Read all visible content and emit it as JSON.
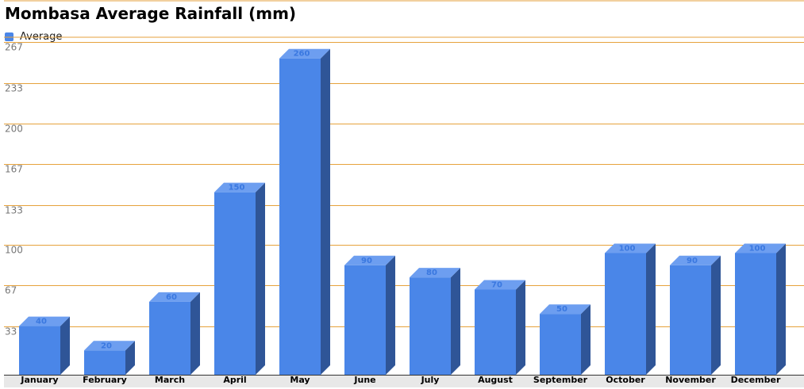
{
  "chart_data": {
    "type": "bar",
    "title": "Mombasa Average Rainfall (mm)",
    "xlabel": "",
    "ylabel": "",
    "categories": [
      "January",
      "February",
      "March",
      "April",
      "May",
      "June",
      "July",
      "August",
      "September",
      "October",
      "November",
      "December"
    ],
    "series": [
      {
        "name": "Average",
        "values": [
          40,
          20,
          60,
          150,
          260,
          90,
          80,
          70,
          50,
          100,
          90,
          100
        ]
      }
    ],
    "yticks": [
      "33",
      "67",
      "100",
      "133",
      "167",
      "200",
      "233",
      "267"
    ],
    "ylim": [
      0,
      267
    ],
    "grid": true,
    "legend": "top-left",
    "colors": {
      "bar_front": "#4a86e8",
      "bar_top": "#6d9ef0",
      "bar_side": "#2f5597",
      "grid": "#e6a23c",
      "value_label": "#3a78e0",
      "floor": "#e8e8e8"
    }
  }
}
